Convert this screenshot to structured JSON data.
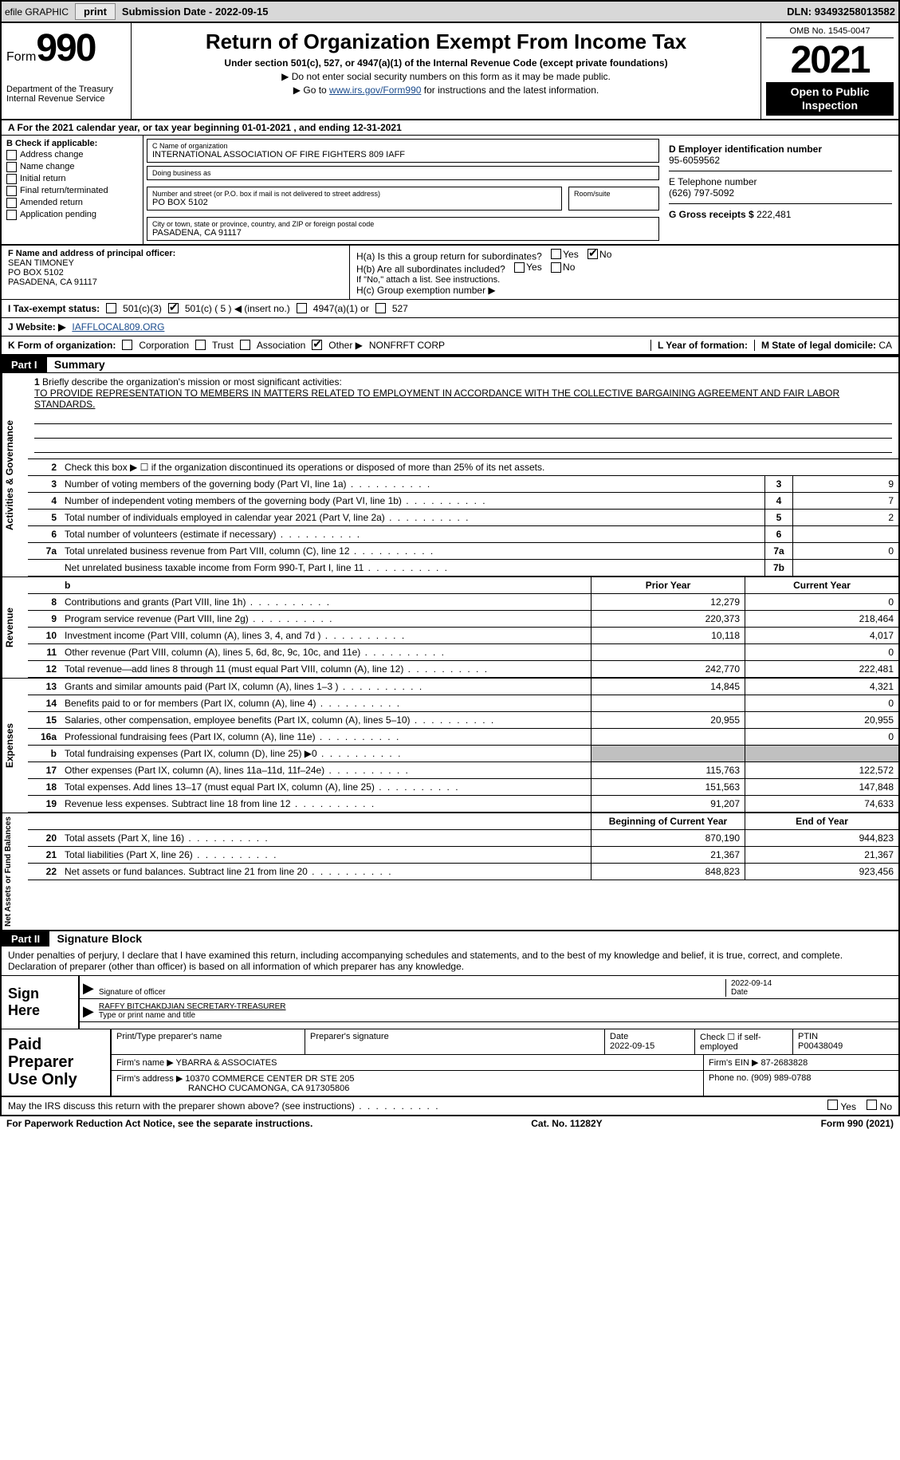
{
  "topbar": {
    "efile": "efile GRAPHIC",
    "print": "print",
    "subdate_lbl": "Submission Date - ",
    "subdate": "2022-09-15",
    "dln_lbl": "DLN: ",
    "dln": "93493258013582"
  },
  "header": {
    "form_lbl": "Form",
    "form_num": "990",
    "dept": "Department of the Treasury Internal Revenue Service",
    "title": "Return of Organization Exempt From Income Tax",
    "subtitle": "Under section 501(c), 527, or 4947(a)(1) of the Internal Revenue Code (except private foundations)",
    "arrow1": "▶ Do not enter social security numbers on this form as it may be made public.",
    "arrow2_pre": "▶ Go to ",
    "arrow2_link": "www.irs.gov/Form990",
    "arrow2_post": " for instructions and the latest information.",
    "omb": "OMB No. 1545-0047",
    "year": "2021",
    "opento": "Open to Public Inspection"
  },
  "a_row": "A For the 2021 calendar year, or tax year beginning 01-01-2021    , and ending 12-31-2021",
  "b": {
    "lbl": "B Check if applicable:",
    "opts": [
      "Address change",
      "Name change",
      "Initial return",
      "Final return/terminated",
      "Amended return",
      "Application pending"
    ]
  },
  "c": {
    "name_lbl": "C Name of organization",
    "name": "INTERNATIONAL ASSOCIATION OF FIRE FIGHTERS 809 IAFF",
    "dba_lbl": "Doing business as",
    "dba": "",
    "street_lbl": "Number and street (or P.O. box if mail is not delivered to street address)",
    "street": "PO BOX 5102",
    "room_lbl": "Room/suite",
    "city_lbl": "City or town, state or province, country, and ZIP or foreign postal code",
    "city": "PASADENA, CA  91117"
  },
  "d": {
    "lbl": "D Employer identification number",
    "val": "95-6059562"
  },
  "e": {
    "lbl": "E Telephone number",
    "val": "(626) 797-5092"
  },
  "g": {
    "lbl": "G Gross receipts $ ",
    "val": "222,481"
  },
  "f": {
    "lbl": "F  Name and address of principal officer:",
    "name": "SEAN TIMONEY",
    "addr1": "PO BOX 5102",
    "addr2": "PASADENA, CA  91117"
  },
  "h": {
    "a": "H(a)  Is this a group return for subordinates?",
    "b": "H(b)  Are all subordinates included?",
    "b_note": "If \"No,\" attach a list. See instructions.",
    "c": "H(c)  Group exemption number ▶",
    "yes": "Yes",
    "no": "No"
  },
  "i": {
    "lbl": "I  Tax-exempt status:",
    "o1": "501(c)(3)",
    "o2": "501(c) ( 5 ) ◀ (insert no.)",
    "o3": "4947(a)(1) or",
    "o4": "527"
  },
  "j": {
    "lbl": "J  Website: ▶",
    "val": " IAFFLOCAL809.ORG"
  },
  "k": {
    "lbl": "K Form of organization:",
    "o1": "Corporation",
    "o2": "Trust",
    "o3": "Association",
    "o4": "Other ▶",
    "o4v": "NONFRFT CORP",
    "l_lbl": "L Year of formation:",
    "l_val": "",
    "m_lbl": "M State of legal domicile: ",
    "m_val": "CA"
  },
  "part1": {
    "bar": "Part I",
    "title": "Summary"
  },
  "brief": {
    "num": "1",
    "lbl": "Briefly describe the organization's mission or most significant activities:",
    "text": "TO PROVIDE REPRESENTATION TO MEMBERS IN MATTERS RELATED TO EMPLOYMENT IN ACCORDANCE WITH THE COLLECTIVE BARGAINING AGREEMENT AND FAIR LABOR STANDARDS."
  },
  "ag": {
    "vlabel": "Activities & Governance",
    "l2": "Check this box ▶ ☐ if the organization discontinued its operations or disposed of more than 25% of its net assets.",
    "rows": [
      {
        "n": "3",
        "d": "Number of voting members of the governing body (Part VI, line 1a)",
        "b": "3",
        "v": "9"
      },
      {
        "n": "4",
        "d": "Number of independent voting members of the governing body (Part VI, line 1b)",
        "b": "4",
        "v": "7"
      },
      {
        "n": "5",
        "d": "Total number of individuals employed in calendar year 2021 (Part V, line 2a)",
        "b": "5",
        "v": "2"
      },
      {
        "n": "6",
        "d": "Total number of volunteers (estimate if necessary)",
        "b": "6",
        "v": ""
      },
      {
        "n": "7a",
        "d": "Total unrelated business revenue from Part VIII, column (C), line 12",
        "b": "7a",
        "v": "0"
      },
      {
        "n": "",
        "d": "Net unrelated business taxable income from Form 990-T, Part I, line 11",
        "b": "7b",
        "v": ""
      }
    ]
  },
  "revenue": {
    "vlabel": "Revenue",
    "hdr_prior": "Prior Year",
    "hdr_curr": "Current Year",
    "rows": [
      {
        "n": "8",
        "d": "Contributions and grants (Part VIII, line 1h)",
        "p": "12,279",
        "c": "0"
      },
      {
        "n": "9",
        "d": "Program service revenue (Part VIII, line 2g)",
        "p": "220,373",
        "c": "218,464"
      },
      {
        "n": "10",
        "d": "Investment income (Part VIII, column (A), lines 3, 4, and 7d )",
        "p": "10,118",
        "c": "4,017"
      },
      {
        "n": "11",
        "d": "Other revenue (Part VIII, column (A), lines 5, 6d, 8c, 9c, 10c, and 11e)",
        "p": "",
        "c": "0"
      },
      {
        "n": "12",
        "d": "Total revenue—add lines 8 through 11 (must equal Part VIII, column (A), line 12)",
        "p": "242,770",
        "c": "222,481"
      }
    ]
  },
  "expenses": {
    "vlabel": "Expenses",
    "rows": [
      {
        "n": "13",
        "d": "Grants and similar amounts paid (Part IX, column (A), lines 1–3 )",
        "p": "14,845",
        "c": "4,321"
      },
      {
        "n": "14",
        "d": "Benefits paid to or for members (Part IX, column (A), line 4)",
        "p": "",
        "c": "0"
      },
      {
        "n": "15",
        "d": "Salaries, other compensation, employee benefits (Part IX, column (A), lines 5–10)",
        "p": "20,955",
        "c": "20,955"
      },
      {
        "n": "16a",
        "d": "Professional fundraising fees (Part IX, column (A), line 11e)",
        "p": "",
        "c": "0"
      },
      {
        "n": "b",
        "d": "Total fundraising expenses (Part IX, column (D), line 25) ▶0",
        "p": "SHADED",
        "c": "SHADED"
      },
      {
        "n": "17",
        "d": "Other expenses (Part IX, column (A), lines 11a–11d, 11f–24e)",
        "p": "115,763",
        "c": "122,572"
      },
      {
        "n": "18",
        "d": "Total expenses. Add lines 13–17 (must equal Part IX, column (A), line 25)",
        "p": "151,563",
        "c": "147,848"
      },
      {
        "n": "19",
        "d": "Revenue less expenses. Subtract line 18 from line 12",
        "p": "91,207",
        "c": "74,633"
      }
    ]
  },
  "netassets": {
    "vlabel": "Net Assets or Fund Balances",
    "hdr_prior": "Beginning of Current Year",
    "hdr_curr": "End of Year",
    "rows": [
      {
        "n": "20",
        "d": "Total assets (Part X, line 16)",
        "p": "870,190",
        "c": "944,823"
      },
      {
        "n": "21",
        "d": "Total liabilities (Part X, line 26)",
        "p": "21,367",
        "c": "21,367"
      },
      {
        "n": "22",
        "d": "Net assets or fund balances. Subtract line 21 from line 20",
        "p": "848,823",
        "c": "923,456"
      }
    ]
  },
  "part2": {
    "bar": "Part II",
    "title": "Signature Block"
  },
  "sig": {
    "text": "Under penalties of perjury, I declare that I have examined this return, including accompanying schedules and statements, and to the best of my knowledge and belief, it is true, correct, and complete. Declaration of preparer (other than officer) is based on all information of which preparer has any knowledge.",
    "here": "Sign Here",
    "sig_of_officer": "Signature of officer",
    "date": "2022-09-14",
    "date_lbl": "Date",
    "name": "RAFFY BITCHAKDJIAN  SECRETARY-TREASURER",
    "name_lbl": "Type or print name and title"
  },
  "prep": {
    "lbl": "Paid Preparer Use Only",
    "r1": {
      "c1": "Print/Type preparer's name",
      "c2": "Preparer's signature",
      "c3l": "Date",
      "c3": "2022-09-15",
      "c4": "Check ☐ if self-employed",
      "c5l": "PTIN",
      "c5": "P00438049"
    },
    "r2": {
      "c1": "Firm's name      ▶ YBARRA & ASSOCIATES",
      "c2": "Firm's EIN ▶ 87-2683828"
    },
    "r3": {
      "c1": "Firm's address ▶ 10370 COMMERCE CENTER DR STE 205",
      "c2": "Phone no. (909) 989-0788"
    },
    "r3b": "RANCHO CUCAMONGA, CA  917305806"
  },
  "footer": {
    "q": "May the IRS discuss this return with the preparer shown above? (see instructions)",
    "yes": "Yes",
    "no": "No",
    "paperwork": "For Paperwork Reduction Act Notice, see the separate instructions.",
    "cat": "Cat. No. 11282Y",
    "form": "Form 990 (2021)"
  },
  "colors": {
    "topbar_bg": "#d8d8d8",
    "link": "#1a4b8c",
    "shaded": "#c0c0c0"
  }
}
